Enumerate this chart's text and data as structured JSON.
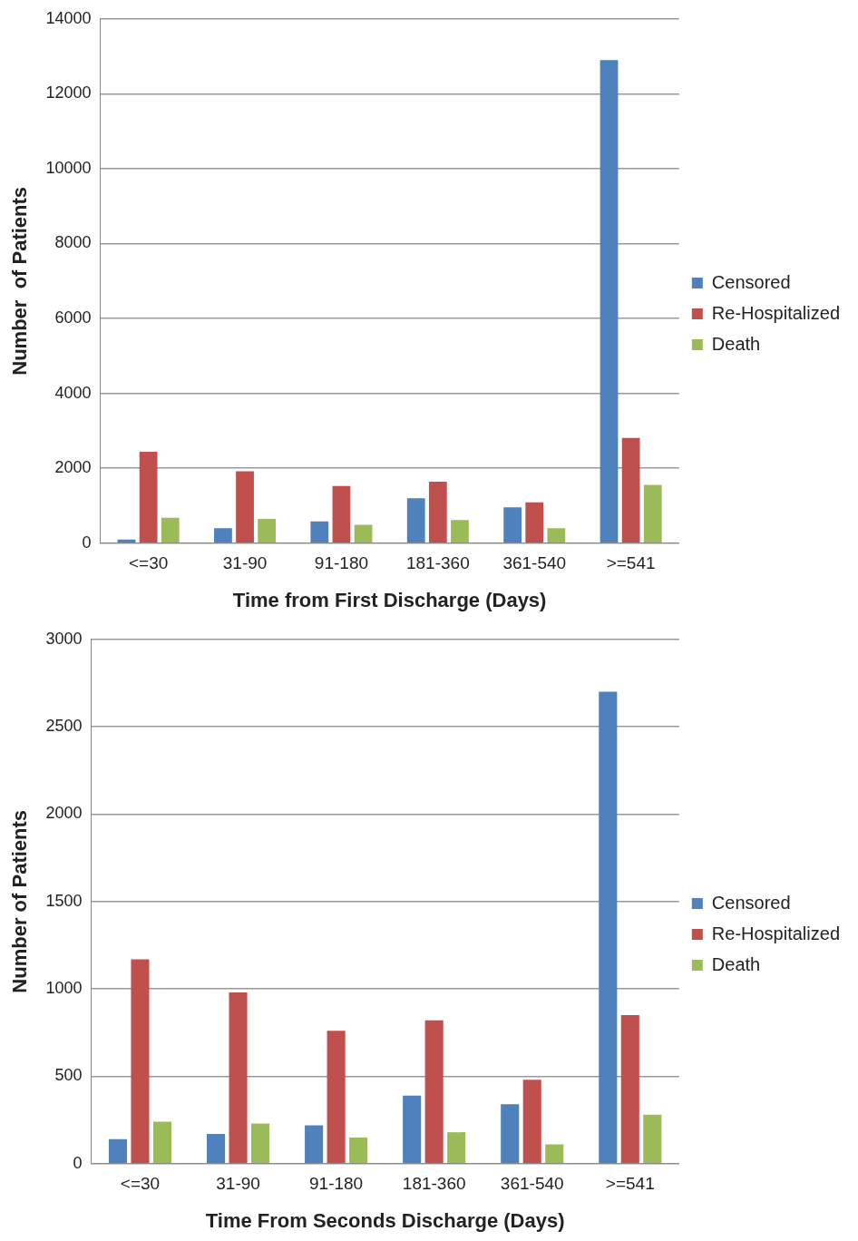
{
  "chart_data": [
    {
      "type": "bar",
      "xlabel": "Time from First Discharge (Days)",
      "ylabel": "Number  of Patients",
      "categories": [
        "<=30",
        "31-90",
        "91-180",
        "181-360",
        "361-540",
        ">=541"
      ],
      "series": [
        {
          "name": "Censored",
          "color": "#4f81bd",
          "values": [
            100,
            400,
            580,
            1200,
            960,
            12900
          ]
        },
        {
          "name": "Re-Hospitalized",
          "color": "#c0504d",
          "values": [
            2440,
            1920,
            1530,
            1640,
            1090,
            2810
          ]
        },
        {
          "name": "Death",
          "color": "#9bbb59",
          "values": [
            680,
            650,
            490,
            620,
            400,
            1560
          ]
        }
      ],
      "ylim": [
        0,
        14000
      ],
      "yticks": [
        0,
        2000,
        4000,
        6000,
        8000,
        10000,
        12000,
        14000
      ],
      "grid": "y",
      "legend": "right"
    },
    {
      "type": "bar",
      "xlabel": "Time From Seconds Discharge (Days)",
      "ylabel": "Number of Patients",
      "categories": [
        "<=30",
        "31-90",
        "91-180",
        "181-360",
        "361-540",
        ">=541"
      ],
      "series": [
        {
          "name": "Censored",
          "color": "#4f81bd",
          "values": [
            140,
            170,
            220,
            390,
            340,
            2700
          ]
        },
        {
          "name": "Re-Hospitalized",
          "color": "#c0504d",
          "values": [
            1170,
            980,
            760,
            820,
            480,
            850
          ]
        },
        {
          "name": "Death",
          "color": "#9bbb59",
          "values": [
            240,
            230,
            150,
            180,
            110,
            280
          ]
        }
      ],
      "ylim": [
        0,
        3000
      ],
      "yticks": [
        0,
        500,
        1000,
        1500,
        2000,
        2500,
        3000
      ],
      "grid": "y",
      "legend": "right"
    }
  ]
}
